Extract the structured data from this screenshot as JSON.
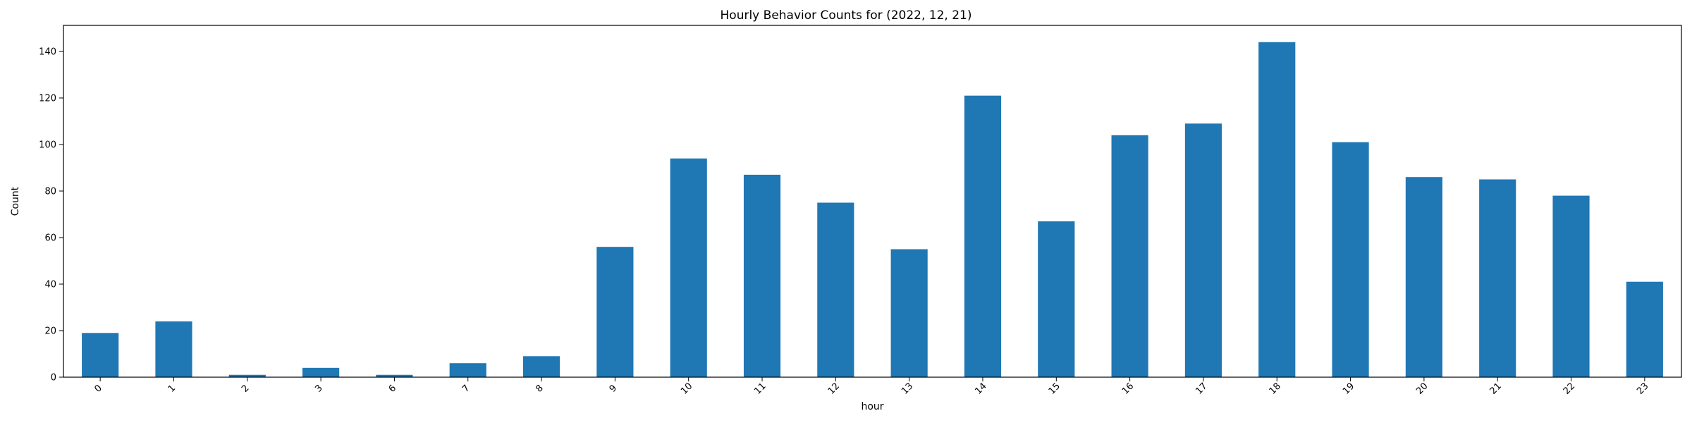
{
  "chart_data": {
    "type": "bar",
    "title": "Hourly Behavior Counts for (2022, 12, 21)",
    "xlabel": "hour",
    "ylabel": "Count",
    "categories": [
      "0",
      "1",
      "2",
      "3",
      "6",
      "7",
      "8",
      "9",
      "10",
      "11",
      "12",
      "13",
      "14",
      "15",
      "16",
      "17",
      "18",
      "19",
      "20",
      "21",
      "22",
      "23"
    ],
    "values": [
      19,
      24,
      1,
      4,
      1,
      6,
      9,
      56,
      94,
      87,
      75,
      55,
      121,
      67,
      104,
      109,
      144,
      101,
      86,
      85,
      78,
      41
    ],
    "yticks": [
      0,
      20,
      40,
      60,
      80,
      100,
      120,
      140
    ],
    "ylim": [
      0,
      151.2
    ],
    "grid": false,
    "bar_color": "#1f77b4",
    "xtick_rotation": 45
  }
}
